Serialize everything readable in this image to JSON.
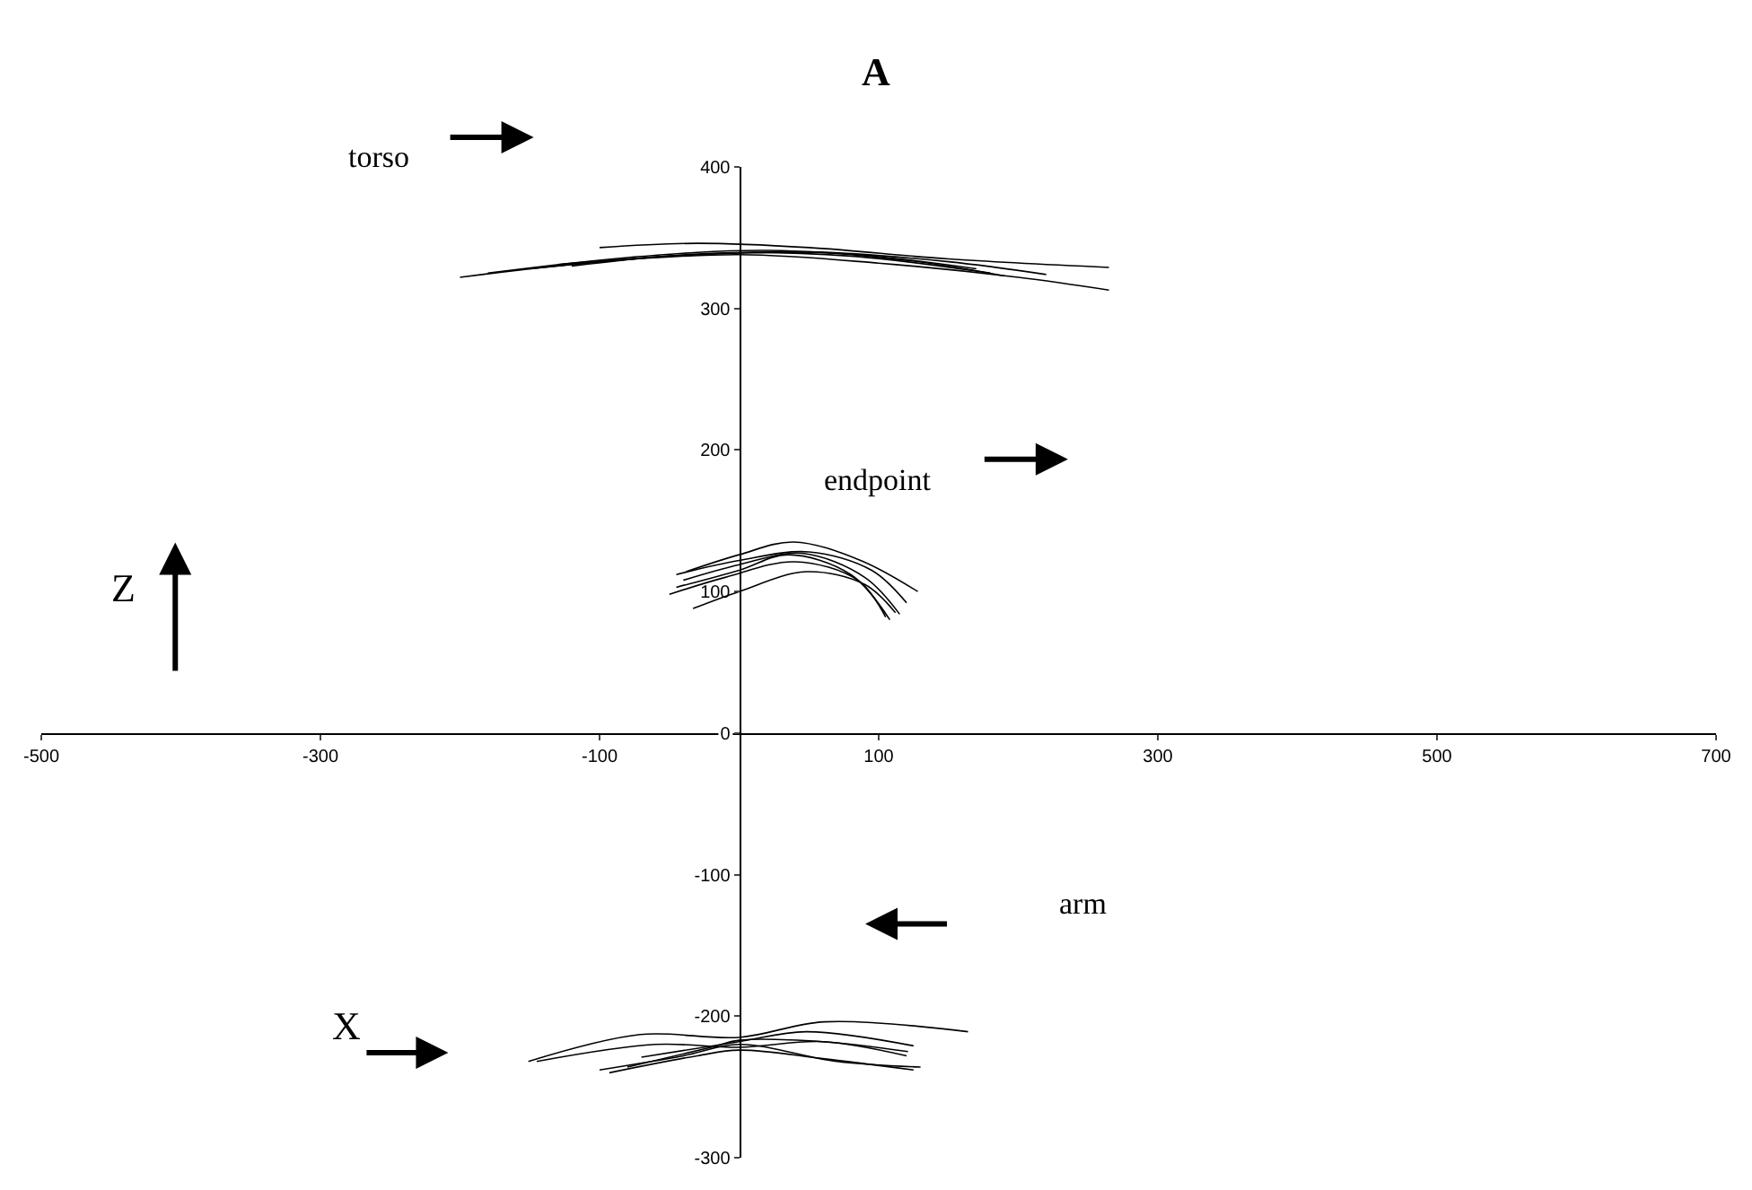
{
  "chart_data": {
    "type": "line",
    "title": "A",
    "xlabel": "X",
    "ylabel": "Z",
    "annotations": [
      "torso",
      "endpoint",
      "arm"
    ],
    "xlim": [
      -500,
      700
    ],
    "xticks": [
      -500,
      -300,
      -100,
      100,
      300,
      500,
      700
    ],
    "ylim": [
      -300,
      400
    ],
    "yticks": [
      -300,
      -200,
      -100,
      0,
      100,
      200,
      300,
      400
    ],
    "marker": "none",
    "line_style": "solid",
    "series": [
      {
        "color": "#000000",
        "x": [
          -200,
          -100,
          0,
          100,
          200,
          265
        ],
        "values": [
          322,
          333,
          338,
          332,
          322,
          313
        ]
      },
      {
        "color": "#000000",
        "x": [
          -150,
          -50,
          50,
          150,
          220
        ],
        "values": [
          328,
          337,
          340,
          333,
          324
        ]
      },
      {
        "color": "#000000",
        "x": [
          -130,
          -30,
          70,
          170
        ],
        "values": [
          331,
          338,
          339,
          328
        ]
      },
      {
        "color": "#000000",
        "x": [
          -100,
          -30,
          50,
          150,
          265
        ],
        "values": [
          343,
          346,
          343,
          335,
          329
        ]
      },
      {
        "color": "#000000",
        "x": [
          -180,
          -80,
          20,
          120,
          190
        ],
        "values": [
          325,
          336,
          341,
          334,
          323
        ]
      },
      {
        "color": "#000000",
        "x": [
          -120,
          -20,
          80,
          180
        ],
        "values": [
          330,
          339,
          337,
          325
        ]
      },
      {
        "color": "#000000",
        "x": [
          -38,
          0,
          39,
          87,
          128
        ],
        "values": [
          114,
          126,
          135,
          122,
          100
        ]
      },
      {
        "color": "#000000",
        "x": [
          -45,
          0,
          35,
          80,
          108
        ],
        "values": [
          103,
          115,
          126,
          112,
          80
        ]
      },
      {
        "color": "#000000",
        "x": [
          -40,
          0,
          45,
          90,
          115
        ],
        "values": [
          108,
          119,
          127,
          110,
          84
        ]
      },
      {
        "color": "#000000",
        "x": [
          -33,
          0,
          48,
          90,
          112
        ],
        "values": [
          88,
          100,
          114,
          105,
          85
        ]
      },
      {
        "color": "#000000",
        "x": [
          -50,
          -10,
          40,
          85,
          105
        ],
        "values": [
          98,
          110,
          121,
          108,
          82
        ]
      },
      {
        "color": "#000000",
        "x": [
          -45,
          0,
          50,
          95,
          120
        ],
        "values": [
          112,
          122,
          128,
          115,
          92
        ]
      },
      {
        "color": "#000000",
        "x": [
          -151,
          -71,
          0,
          61,
          164
        ],
        "values": [
          -232,
          -213,
          -215,
          -204,
          -211
        ]
      },
      {
        "color": "#000000",
        "x": [
          -145,
          -60,
          0,
          60,
          120
        ],
        "values": [
          -232,
          -220,
          -222,
          -218,
          -228
        ]
      },
      {
        "color": "#000000",
        "x": [
          -93,
          -30,
          0,
          60,
          125
        ],
        "values": [
          -240,
          -228,
          -224,
          -230,
          -238
        ]
      },
      {
        "color": "#000000",
        "x": [
          -80,
          -20,
          0,
          60,
          121
        ],
        "values": [
          -236,
          -222,
          -217,
          -218,
          -225
        ]
      },
      {
        "color": "#000000",
        "x": [
          -70,
          0,
          48,
          125
        ],
        "values": [
          -229,
          -218,
          -211,
          -221
        ]
      },
      {
        "color": "#000000",
        "x": [
          -100,
          -40,
          0,
          70,
          130
        ],
        "values": [
          -238,
          -228,
          -220,
          -232,
          -236
        ]
      }
    ]
  }
}
